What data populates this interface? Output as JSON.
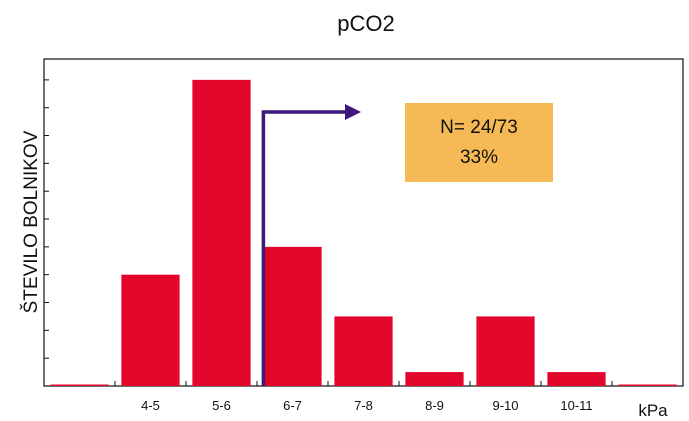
{
  "chart_data": {
    "type": "bar",
    "title": "pCO2",
    "xlabel": "kPa",
    "ylabel": "ŠTEVILO BOLNIKOV",
    "categories": [
      "",
      "4-5",
      "5-6",
      "6-7",
      "7-8",
      "8-9",
      "9-10",
      "10-11",
      ""
    ],
    "values": [
      0,
      8,
      22,
      10,
      5,
      1,
      5,
      1,
      0
    ],
    "ylim": [
      0,
      23.5
    ],
    "ytick_step": 2,
    "grid": false,
    "colors": {
      "bar": "#e2062b",
      "arrow": "#3c1a7a",
      "annotation_box": "#f5b955",
      "axis": "#111111"
    },
    "annotation": {
      "lines": [
        "N= 24/73",
        "33%"
      ],
      "arrow_from_category": "6-7"
    }
  }
}
